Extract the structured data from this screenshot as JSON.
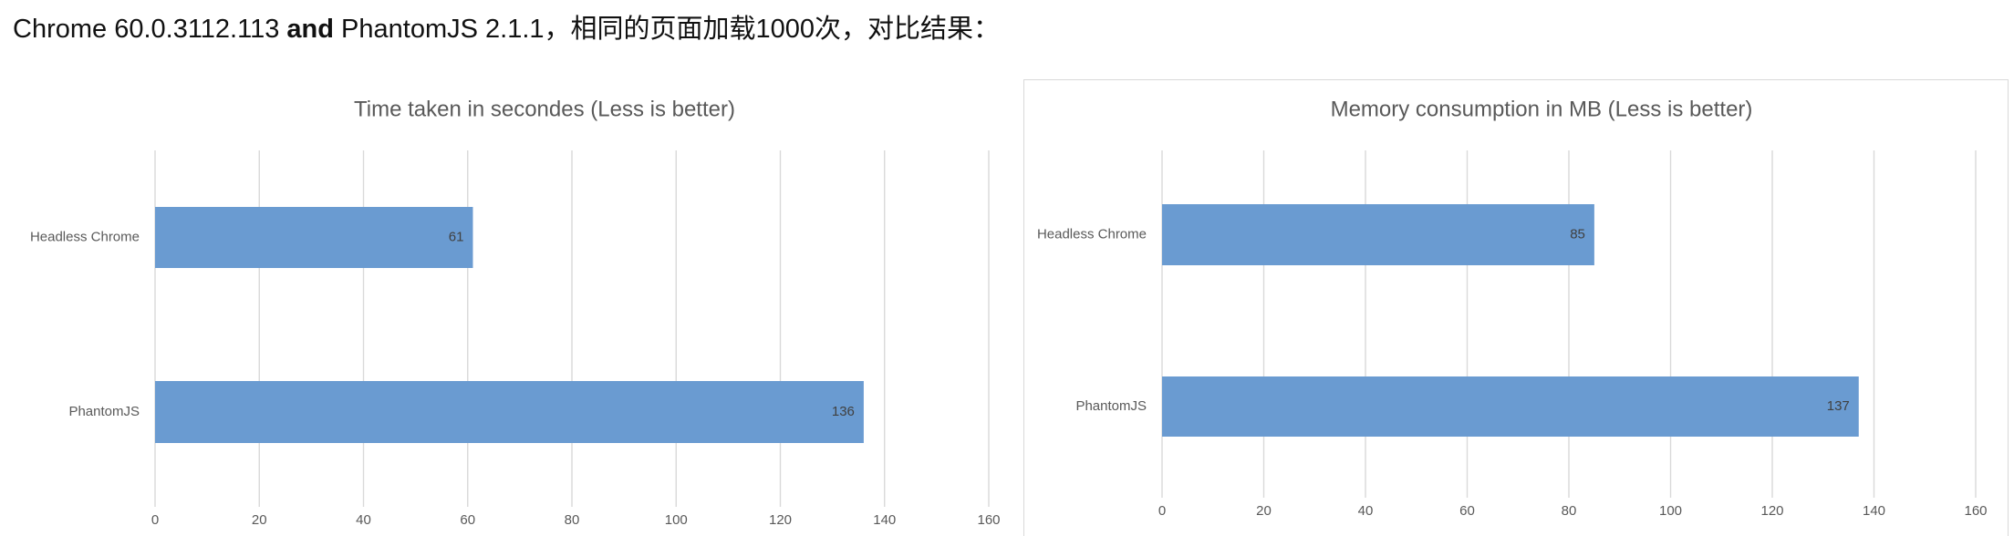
{
  "header": {
    "prefix": "Chrome 60.0.3112.113",
    "bold": "and",
    "suffix": "PhantomJS 2.1.1，相同的页面加载1000次，对比结果："
  },
  "chart_data": [
    {
      "type": "bar",
      "orientation": "horizontal",
      "title": "Time taken in secondes (Less is better)",
      "categories": [
        "Headless Chrome",
        "PhantomJS"
      ],
      "values": [
        61,
        136
      ],
      "color": "#6a9bd1",
      "xlim": [
        0,
        160
      ],
      "xticks": [
        0,
        20,
        40,
        60,
        80,
        100,
        120,
        140,
        160
      ],
      "grid": true
    },
    {
      "type": "bar",
      "orientation": "horizontal",
      "title": "Memory consumption in MB (Less is better)",
      "categories": [
        "Headless Chrome",
        "PhantomJS"
      ],
      "values": [
        85,
        137
      ],
      "color": "#6a9bd1",
      "xlim": [
        0,
        160
      ],
      "xticks": [
        0,
        20,
        40,
        60,
        80,
        100,
        120,
        140,
        160
      ],
      "grid": true
    }
  ]
}
